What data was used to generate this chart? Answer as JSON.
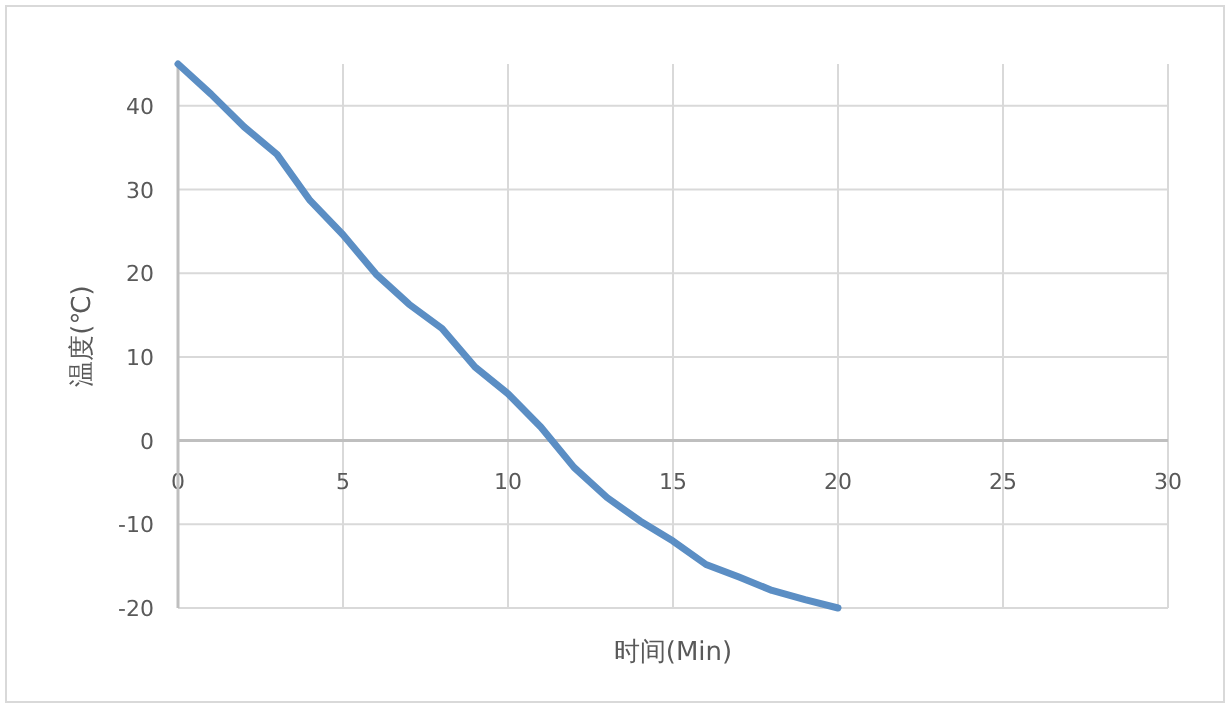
{
  "chart_data": {
    "type": "line",
    "xlabel": "时间(Min)",
    "ylabel": "温度(℃)",
    "x": [
      0,
      1,
      2,
      3,
      4,
      5,
      6,
      7,
      8,
      9,
      10,
      11,
      12,
      13,
      14,
      15,
      16,
      17,
      18,
      19,
      20
    ],
    "series": [
      {
        "color": "#5b8ec4",
        "values": [
          45,
          41.4,
          37.5,
          34.2,
          28.7,
          24.6,
          19.9,
          16.3,
          13.4,
          8.8,
          5.6,
          1.6,
          -3.2,
          -6.8,
          -9.6,
          -12,
          -14.8,
          -16.3,
          -17.9,
          -19,
          -20
        ]
      }
    ],
    "xlim": [
      0,
      30
    ],
    "xticks": [
      0,
      5,
      10,
      15,
      20,
      25,
      30
    ],
    "ylim": [
      -20,
      45
    ],
    "yticks": [
      -20,
      -10,
      0,
      10,
      20,
      30,
      40
    ],
    "grid": true,
    "marker": "none",
    "line_style": "solid"
  }
}
